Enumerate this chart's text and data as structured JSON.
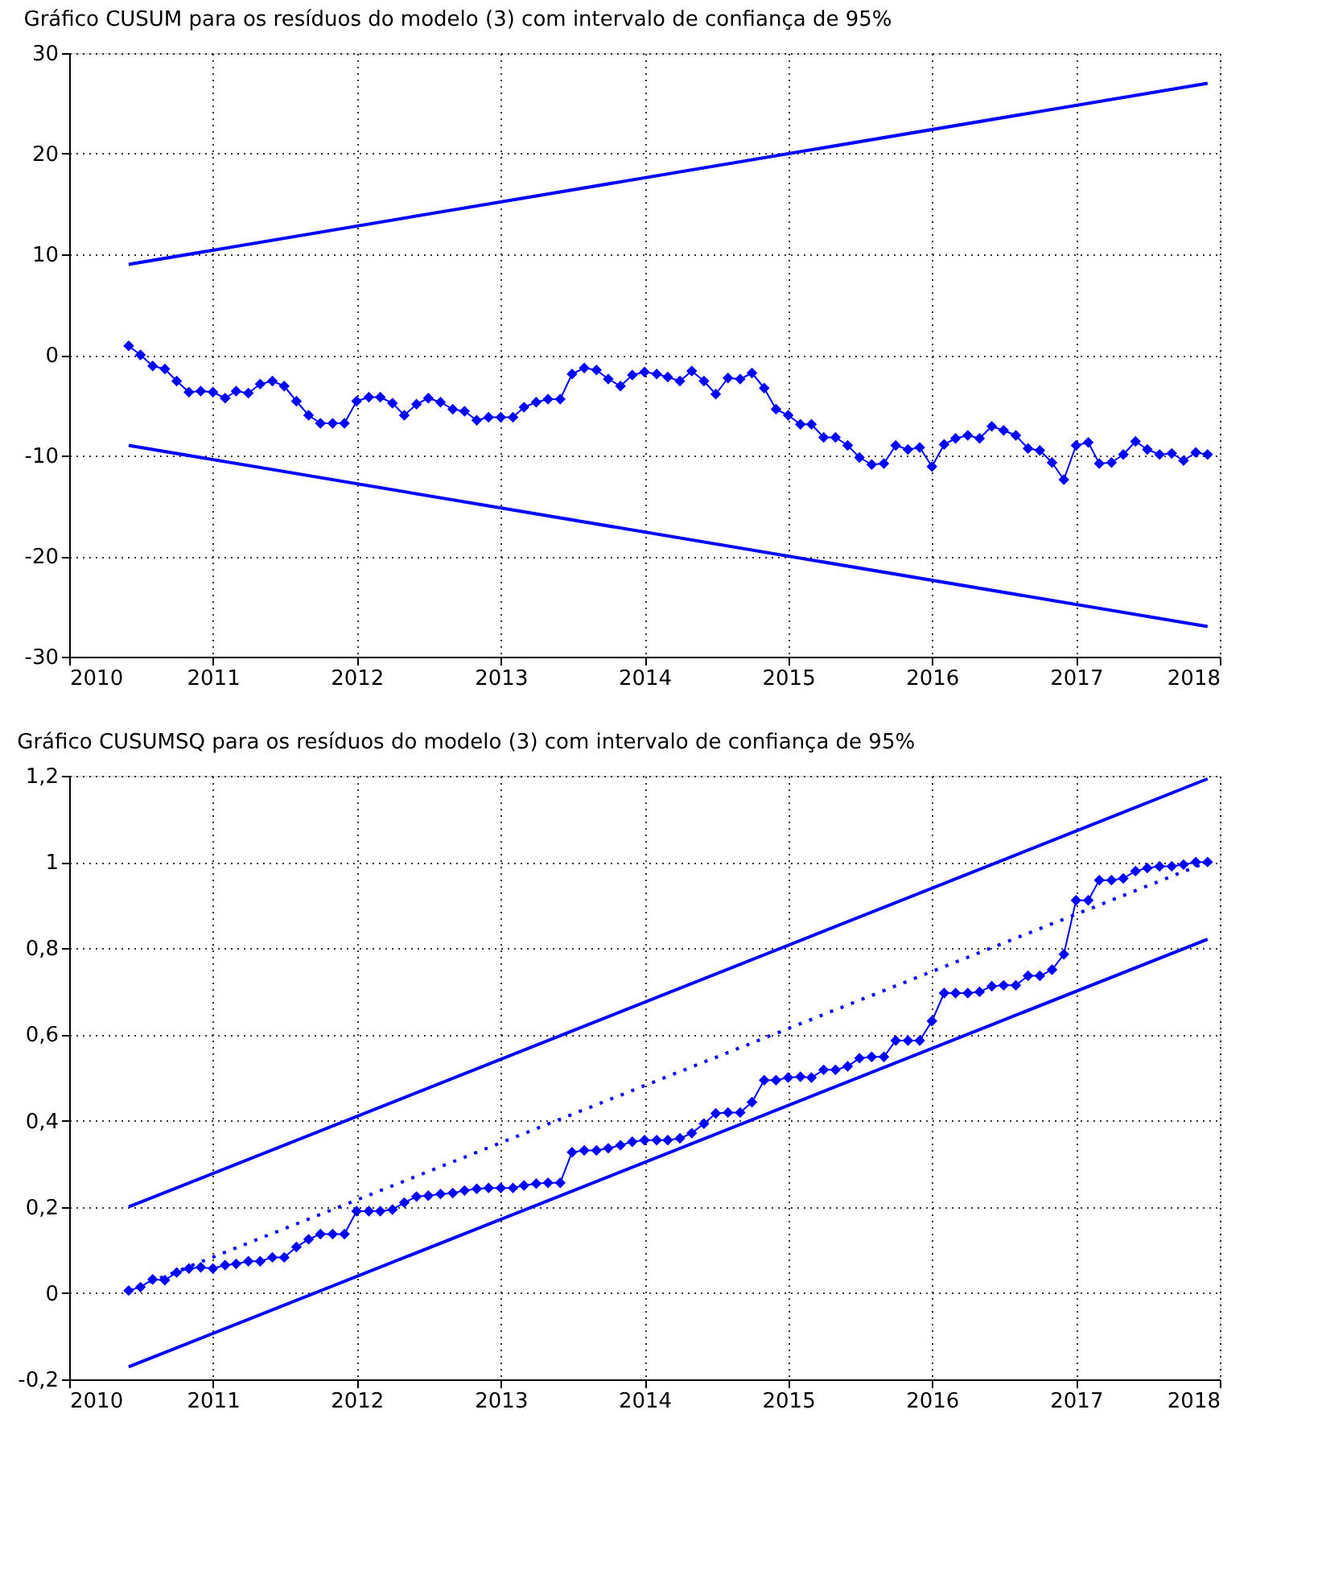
{
  "chart_data": [
    {
      "type": "line",
      "title": "Gráfico CUSUM para os resíduos do modelo (3) com intervalo de confiança de 95%",
      "x": [
        "2010-06",
        "2010-07",
        "2010-08",
        "2010-09",
        "2010-10",
        "2010-11",
        "2010-12",
        "2011-01",
        "2011-02",
        "2011-03",
        "2011-04",
        "2011-05",
        "2011-06",
        "2011-07",
        "2011-08",
        "2011-09",
        "2011-10",
        "2011-11",
        "2011-12",
        "2012-01",
        "2012-02",
        "2012-03",
        "2012-04",
        "2012-05",
        "2012-06",
        "2012-07",
        "2012-08",
        "2012-09",
        "2012-10",
        "2012-11",
        "2012-12",
        "2013-01",
        "2013-02",
        "2013-03",
        "2013-04",
        "2013-05",
        "2013-06",
        "2013-07",
        "2013-08",
        "2013-09",
        "2013-10",
        "2013-11",
        "2013-12",
        "2014-01",
        "2014-02",
        "2014-03",
        "2014-04",
        "2014-05",
        "2014-06",
        "2014-07",
        "2014-08",
        "2014-09",
        "2014-10",
        "2014-11",
        "2014-12",
        "2015-01",
        "2015-02",
        "2015-03",
        "2015-04",
        "2015-05",
        "2015-06",
        "2015-07",
        "2015-08",
        "2015-09",
        "2015-10",
        "2015-11",
        "2015-12",
        "2016-01",
        "2016-02",
        "2016-03",
        "2016-04",
        "2016-05",
        "2016-06",
        "2016-07",
        "2016-08",
        "2016-09",
        "2016-10",
        "2016-11",
        "2016-12",
        "2017-01",
        "2017-02",
        "2017-03",
        "2017-04",
        "2017-05",
        "2017-06",
        "2017-07",
        "2017-08",
        "2017-09",
        "2017-10",
        "2017-11",
        "2017-12"
      ],
      "series": [
        {
          "color": "#0000ff",
          "marker": "diamond",
          "line_style": "solid",
          "values": [
            0.9,
            0.0,
            -1.1,
            -1.4,
            -2.6,
            -3.7,
            -3.6,
            -3.7,
            -4.3,
            -3.6,
            -3.8,
            -2.9,
            -2.6,
            -3.1,
            -4.6,
            -6.0,
            -6.8,
            -6.8,
            -6.8,
            -4.6,
            -4.2,
            -4.2,
            -4.8,
            -6.0,
            -4.9,
            -4.3,
            -4.7,
            -5.4,
            -5.6,
            -6.5,
            -6.2,
            -6.2,
            -6.2,
            -5.2,
            -4.7,
            -4.4,
            -4.4,
            -1.9,
            -1.3,
            -1.5,
            -2.4,
            -3.1,
            -2.0,
            -1.7,
            -1.9,
            -2.2,
            -2.6,
            -1.6,
            -2.6,
            -3.9,
            -2.3,
            -2.4,
            -1.8,
            -3.3,
            -5.4,
            -6.0,
            -6.9,
            -6.9,
            -8.2,
            -8.2,
            -9.0,
            -10.2,
            -10.9,
            -10.8,
            -9.0,
            -9.4,
            -9.2,
            -11.1,
            -8.9,
            -8.3,
            -8.0,
            -8.3,
            -7.1,
            -7.5,
            -8.0,
            -9.3,
            -9.5,
            -10.7,
            -12.4,
            -9.0,
            -8.7,
            -10.8,
            -10.7,
            -9.9,
            -8.6,
            -9.4,
            -9.9,
            -9.8,
            -10.5,
            -9.7,
            -9.9
          ]
        },
        {
          "type": "line",
          "color": "#0000ff",
          "marker": "none",
          "line_style": "solid",
          "x": [
            "2010-06",
            "2017-12"
          ],
          "values": [
            9,
            27
          ]
        },
        {
          "type": "line",
          "color": "#0000ff",
          "marker": "none",
          "line_style": "solid",
          "x": [
            "2010-06",
            "2017-12"
          ],
          "values": [
            -9,
            -27
          ]
        }
      ],
      "xlim": [
        "2010",
        "2018"
      ],
      "xticks": [
        "2010",
        "2011",
        "2012",
        "2013",
        "2014",
        "2015",
        "2016",
        "2017",
        "2018"
      ],
      "ylim": [
        -30,
        30
      ],
      "yticks": [
        -30,
        -20,
        -10,
        0,
        10,
        20,
        30
      ],
      "grid": true
    },
    {
      "type": "line",
      "title": "Gráfico CUSUMSQ para os resíduos do modelo (3) com intervalo de confiança de 95%",
      "x": [
        "2010-06",
        "2010-07",
        "2010-08",
        "2010-09",
        "2010-10",
        "2010-11",
        "2010-12",
        "2011-01",
        "2011-02",
        "2011-03",
        "2011-04",
        "2011-05",
        "2011-06",
        "2011-07",
        "2011-08",
        "2011-09",
        "2011-10",
        "2011-11",
        "2011-12",
        "2012-01",
        "2012-02",
        "2012-03",
        "2012-04",
        "2012-05",
        "2012-06",
        "2012-07",
        "2012-08",
        "2012-09",
        "2012-10",
        "2012-11",
        "2012-12",
        "2013-01",
        "2013-02",
        "2013-03",
        "2013-04",
        "2013-05",
        "2013-06",
        "2013-07",
        "2013-08",
        "2013-09",
        "2013-10",
        "2013-11",
        "2013-12",
        "2014-01",
        "2014-02",
        "2014-03",
        "2014-04",
        "2014-05",
        "2014-06",
        "2014-07",
        "2014-08",
        "2014-09",
        "2014-10",
        "2014-11",
        "2014-12",
        "2015-01",
        "2015-02",
        "2015-03",
        "2015-04",
        "2015-05",
        "2015-06",
        "2015-07",
        "2015-08",
        "2015-09",
        "2015-10",
        "2015-11",
        "2015-12",
        "2016-01",
        "2016-02",
        "2016-03",
        "2016-04",
        "2016-05",
        "2016-06",
        "2016-07",
        "2016-08",
        "2016-09",
        "2016-10",
        "2016-11",
        "2016-12",
        "2017-01",
        "2017-02",
        "2017-03",
        "2017-04",
        "2017-05",
        "2017-06",
        "2017-07",
        "2017-08",
        "2017-09",
        "2017-10",
        "2017-11",
        "2017-12"
      ],
      "series": [
        {
          "color": "#0000ff",
          "marker": "diamond",
          "line_style": "solid",
          "values": [
            0.006,
            0.014,
            0.032,
            0.03,
            0.048,
            0.057,
            0.06,
            0.057,
            0.065,
            0.068,
            0.074,
            0.074,
            0.083,
            0.083,
            0.107,
            0.125,
            0.137,
            0.137,
            0.137,
            0.19,
            0.19,
            0.19,
            0.194,
            0.21,
            0.224,
            0.226,
            0.23,
            0.232,
            0.238,
            0.242,
            0.244,
            0.244,
            0.244,
            0.25,
            0.254,
            0.256,
            0.256,
            0.327,
            0.331,
            0.331,
            0.336,
            0.343,
            0.351,
            0.355,
            0.355,
            0.355,
            0.359,
            0.371,
            0.393,
            0.417,
            0.419,
            0.419,
            0.443,
            0.494,
            0.494,
            0.5,
            0.502,
            0.5,
            0.518,
            0.518,
            0.526,
            0.545,
            0.548,
            0.548,
            0.586,
            0.586,
            0.586,
            0.631,
            0.696,
            0.696,
            0.696,
            0.699,
            0.712,
            0.714,
            0.714,
            0.736,
            0.736,
            0.75,
            0.786,
            0.911,
            0.911,
            0.958,
            0.958,
            0.962,
            0.979,
            0.986,
            0.99,
            0.99,
            0.994,
            1.0,
            1.0
          ]
        },
        {
          "type": "line",
          "color": "#0000ff",
          "marker": "none",
          "line_style": "solid",
          "x": [
            "2010-06",
            "2017-12"
          ],
          "values": [
            0.2,
            1.193
          ]
        },
        {
          "type": "line",
          "color": "#0000ff",
          "marker": "none",
          "line_style": "dotted",
          "x": [
            "2010-06",
            "2017-12"
          ],
          "values": [
            0.006,
            1.0
          ]
        },
        {
          "type": "line",
          "color": "#0000ff",
          "marker": "none",
          "line_style": "solid",
          "x": [
            "2010-06",
            "2017-12"
          ],
          "values": [
            -0.171,
            0.821
          ]
        }
      ],
      "xlim": [
        "2010",
        "2018"
      ],
      "xticks": [
        "2010",
        "2011",
        "2012",
        "2013",
        "2014",
        "2015",
        "2016",
        "2017",
        "2018"
      ],
      "ylim": [
        -0.2,
        1.2
      ],
      "yticks": [
        {
          "value": -0.2,
          "label": "-0,2"
        },
        0,
        {
          "value": 0.2,
          "label": "0,2"
        },
        {
          "value": 0.4,
          "label": "0,4"
        },
        {
          "value": 0.6,
          "label": "0,6"
        },
        {
          "value": 0.8,
          "label": "0,8"
        },
        1,
        {
          "value": 1.2,
          "label": "1,2"
        }
      ],
      "grid": true
    }
  ]
}
